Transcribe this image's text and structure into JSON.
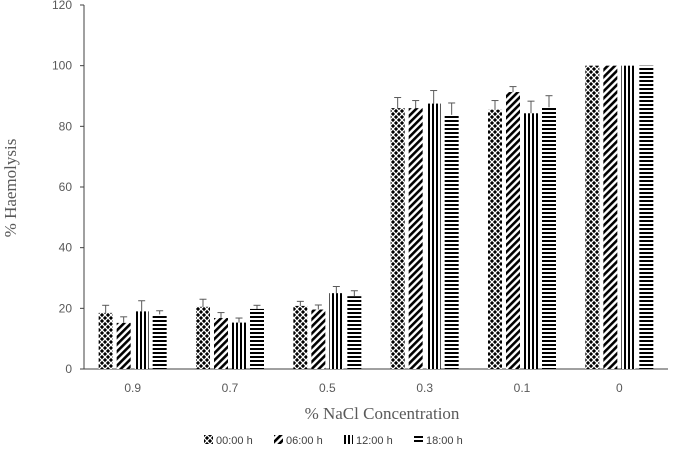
{
  "chart_data": {
    "type": "bar",
    "title": "",
    "xlabel": "% NaCl Concentration",
    "ylabel": "% Haemolysis",
    "categories": [
      "0.9",
      "0.7",
      "0.5",
      "0.3",
      "0.1",
      "0"
    ],
    "ylim": [
      0,
      120
    ],
    "yticks": [
      0,
      20,
      40,
      60,
      80,
      100,
      120
    ],
    "grid": false,
    "legend_position": "bottom",
    "series": [
      {
        "name": "00:00 h",
        "pattern": "crosshatch",
        "values": [
          18.5,
          20.5,
          20.8,
          86,
          85.5,
          100
        ],
        "errors": [
          2.5,
          2.5,
          1.5,
          3.5,
          3,
          0
        ]
      },
      {
        "name": "06:00 h",
        "pattern": "diagonal",
        "values": [
          15.2,
          16.8,
          19.6,
          86,
          91.3,
          100
        ],
        "errors": [
          2,
          1.8,
          1.5,
          2.5,
          1.8,
          0
        ]
      },
      {
        "name": "12:00 h",
        "pattern": "vertical",
        "values": [
          19,
          15.3,
          25,
          87.5,
          84.3,
          100
        ],
        "errors": [
          3.5,
          1.5,
          2.2,
          4.3,
          4,
          0
        ]
      },
      {
        "name": "18:00 h",
        "pattern": "horizontal",
        "values": [
          18,
          19.8,
          24,
          83.8,
          86.3,
          100
        ],
        "errors": [
          1.2,
          1.2,
          1.8,
          3.9,
          3.8,
          0
        ]
      }
    ],
    "colors": {
      "bars": "#000000",
      "axis": "#595959",
      "text": "#595959",
      "background": "#ffffff"
    }
  }
}
